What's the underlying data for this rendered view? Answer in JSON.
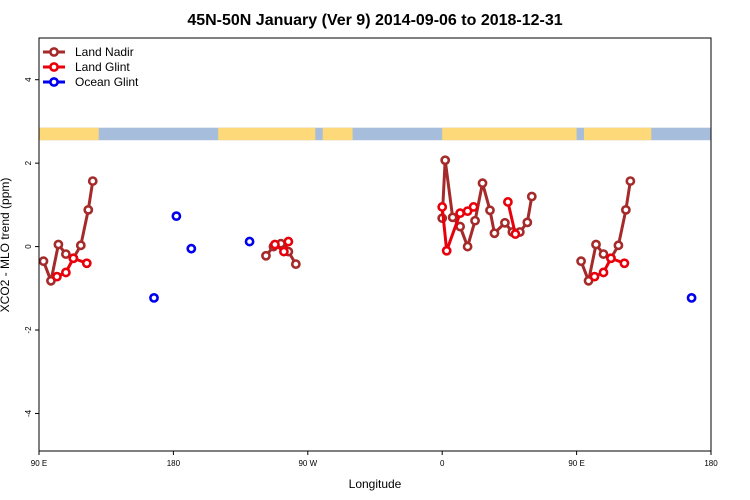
{
  "chart_data": {
    "type": "line",
    "title": "45N-50N January (Ver 9)   2014-09-06 to 2018-12-31",
    "xlabel": "Longitude",
    "ylabel": "XCO2 - MLO trend (ppm)",
    "xlim": [
      0,
      450
    ],
    "ylim": [
      -4.9,
      5
    ],
    "x_ticks": [
      {
        "value": 0,
        "label": "90 E"
      },
      {
        "value": 90,
        "label": "180"
      },
      {
        "value": 180,
        "label": "90 W"
      },
      {
        "value": 270,
        "label": "0"
      },
      {
        "value": 360,
        "label": "90 E"
      },
      {
        "value": 450,
        "label": "180"
      }
    ],
    "y_ticks": [
      {
        "value": -4,
        "label": "-4"
      },
      {
        "value": -2,
        "label": "-2"
      },
      {
        "value": 0,
        "label": "0"
      },
      {
        "value": 2,
        "label": "2"
      },
      {
        "value": 4,
        "label": "4"
      }
    ],
    "map_strip": {
      "ymin": 2.55,
      "ymax": 2.85,
      "ocean_color": "#a6bddb",
      "land_color": "#fdd97a"
    },
    "legend": {
      "position": "top-left"
    },
    "series": [
      {
        "name": "Land Nadir",
        "color": "#a52a2a",
        "connect": true,
        "points": [
          [
            3,
            -0.35
          ],
          [
            8,
            -0.82
          ],
          [
            13,
            0.05
          ],
          [
            18,
            -0.18
          ],
          [
            23,
            -0.28
          ],
          [
            28,
            0.03
          ],
          [
            33,
            0.88
          ],
          [
            36,
            1.57
          ],
          [
            152,
            -0.22
          ],
          [
            157,
            0.0
          ],
          [
            162,
            0.07
          ],
          [
            167,
            -0.12
          ],
          [
            172,
            -0.42
          ],
          [
            270,
            0.68
          ],
          [
            272,
            2.07
          ],
          [
            277,
            0.7
          ],
          [
            282,
            0.48
          ],
          [
            287,
            0.0
          ],
          [
            292,
            0.62
          ],
          [
            297,
            1.52
          ],
          [
            302,
            0.87
          ],
          [
            305,
            0.32
          ],
          [
            312,
            0.57
          ],
          [
            317,
            0.35
          ],
          [
            322,
            0.35
          ],
          [
            327,
            0.58
          ],
          [
            330,
            1.2
          ],
          [
            363,
            -0.35
          ],
          [
            368,
            -0.82
          ],
          [
            373,
            0.05
          ],
          [
            378,
            -0.18
          ],
          [
            383,
            -0.28
          ],
          [
            388,
            0.03
          ],
          [
            393,
            0.88
          ],
          [
            396,
            1.57
          ]
        ]
      },
      {
        "name": "Land Glint",
        "color": "#e8000b",
        "connect": true,
        "points": [
          [
            12,
            -0.72
          ],
          [
            18,
            -0.62
          ],
          [
            23,
            -0.28
          ],
          [
            32,
            -0.4
          ],
          [
            158,
            0.05
          ],
          [
            164,
            -0.12
          ],
          [
            167,
            0.12
          ],
          [
            270,
            0.95
          ],
          [
            273,
            -0.1
          ],
          [
            282,
            0.8
          ],
          [
            287,
            0.85
          ],
          [
            291,
            0.95
          ],
          [
            314,
            1.07
          ],
          [
            319,
            0.3
          ],
          [
            372,
            -0.72
          ],
          [
            378,
            -0.62
          ],
          [
            383,
            -0.28
          ],
          [
            392,
            -0.4
          ]
        ]
      },
      {
        "name": "Ocean Glint",
        "color": "#0000ee",
        "connect": false,
        "points": [
          [
            77,
            -1.23
          ],
          [
            92,
            0.73
          ],
          [
            102,
            -0.05
          ],
          [
            141,
            0.12
          ],
          [
            437,
            -1.23
          ]
        ]
      }
    ]
  }
}
